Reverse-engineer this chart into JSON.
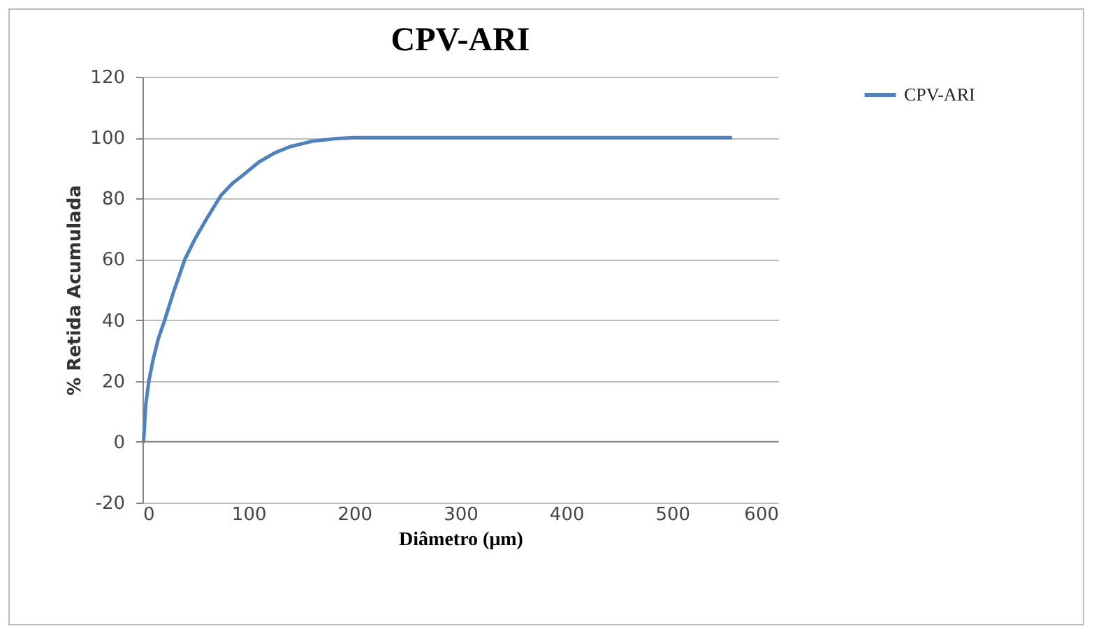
{
  "chart_data": {
    "type": "line",
    "title": "CPV-ARI",
    "xlabel": "Diâmetro (μm)",
    "ylabel": "% Retida Acumulada",
    "x": [
      1,
      3,
      6,
      10,
      15,
      20,
      30,
      40,
      50,
      60,
      74,
      85,
      96,
      110,
      125,
      139,
      160,
      183,
      200,
      250,
      300,
      400,
      500,
      555
    ],
    "series": [
      {
        "name": "CPV-ARI",
        "color": "#4f81bd",
        "values": [
          0,
          12,
          20,
          27,
          34,
          39,
          50,
          60,
          67,
          73,
          81,
          85,
          88,
          92,
          95,
          97,
          98.8,
          99.7,
          100,
          100,
          100,
          100,
          100,
          100
        ]
      }
    ],
    "xlim": [
      0,
      600
    ],
    "xticks": [
      0,
      100,
      200,
      300,
      400,
      500,
      600
    ],
    "ylim": [
      -20,
      120
    ],
    "yticks": [
      -20,
      0,
      20,
      40,
      60,
      80,
      100,
      120
    ],
    "grid": "y",
    "legend": "right",
    "marker": "none",
    "line_style": "solid"
  }
}
